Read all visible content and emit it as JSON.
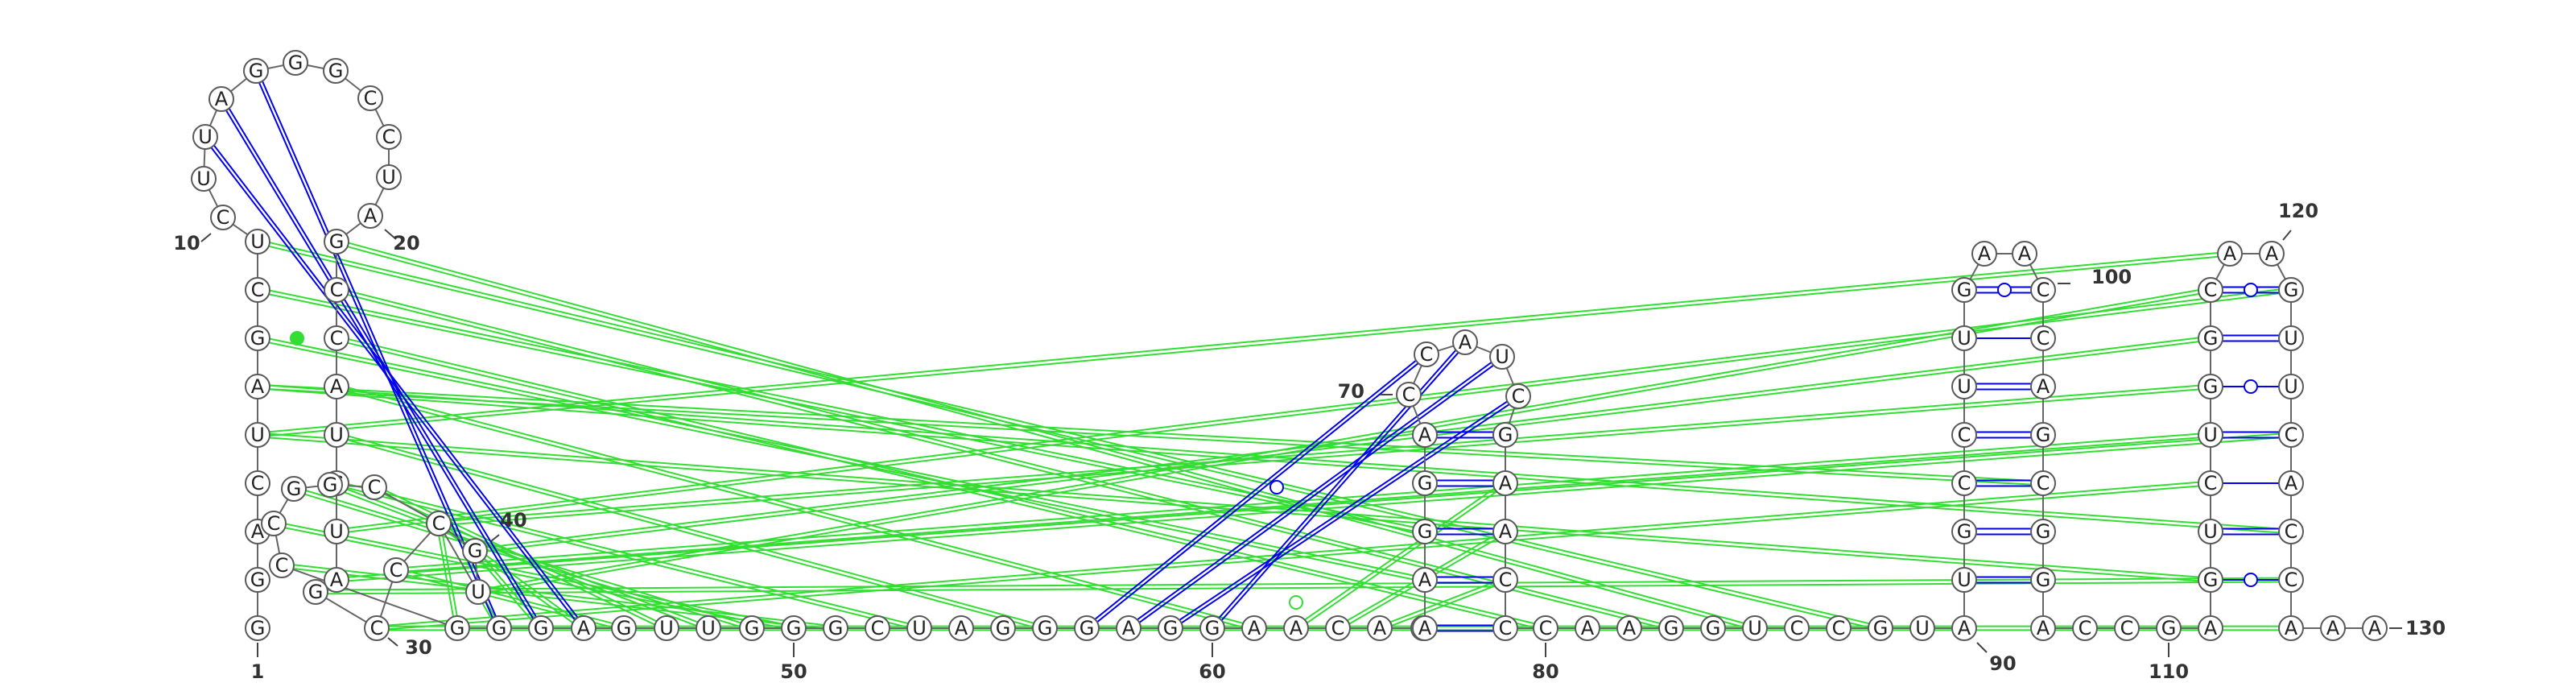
{
  "sequence": "GGACUAGCUCUUAGGGCCUAGCCAUCUAGCCGGUCCGGCCGGGAGUUGGGCUAGGGAGGAACAUAAGGACCAUCGAACCCAAGGUCCGUAUGCCUUGAACCAGCGGACCGAGUCUGGCAAGUUCACCAAAUUC",
  "position_labels": [
    "1",
    "10",
    "20",
    "30",
    "40",
    "50",
    "60",
    "70",
    "80",
    "90",
    "100",
    "110",
    "120",
    "130"
  ],
  "colors": {
    "canonical_pair": "#0000ee",
    "tertiary_pair": "#33dd33",
    "backbone": "#666666"
  },
  "pair_types": [
    "watson-crick",
    "wobble",
    "non-canonical",
    "pseudoknot"
  ]
}
